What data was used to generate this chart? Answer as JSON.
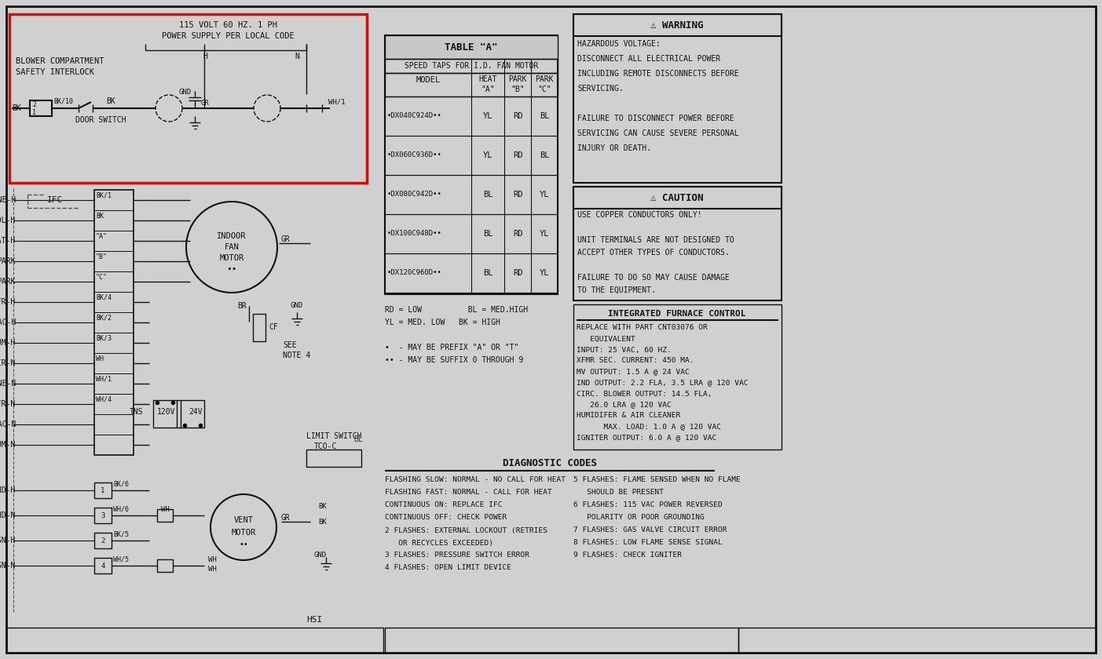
{
  "bg_color": "#d0d0d0",
  "fg_color": "#111111",
  "red_color": "#cc1111",
  "figsize": [
    14.03,
    8.4
  ],
  "dpi": 100,
  "table_title": "TABLE \"A\"",
  "table_subtitle": "SPEED TAPS FOR I.D. FAN MOTOR",
  "table_rows": [
    [
      "•DX040C924D••",
      "YL",
      "RD",
      "BL"
    ],
    [
      "•DX060C936D••",
      "YL",
      "RD",
      "BL"
    ],
    [
      "•DX080C942D••",
      "BL",
      "RD",
      "YL"
    ],
    [
      "•DX100C948D••",
      "BL",
      "RD",
      "YL"
    ],
    [
      "•DX120C960D••",
      "BL",
      "RD",
      "YL"
    ]
  ],
  "legend": [
    "RD = LOW          BL = MED.HIGH",
    "YL = MED. LOW   BK = HIGH",
    "",
    "•  - MAY BE PREFIX \"A\" OR \"T\"",
    "•• - MAY BE SUFFIX 0 THROUGH 9"
  ],
  "warning_lines": [
    "HAZARDOUS VOLTAGE:",
    "DISCONNECT ALL ELECTRICAL POWER",
    "INCLUDING REMOTE DISCONNECTS BEFORE",
    "SERVICING.",
    "",
    "FAILURE TO DISCONNECT POWER BEFORE",
    "SERVICING CAN CAUSE SEVERE PERSONAL",
    "INJURY OR DEATH."
  ],
  "caution_lines": [
    "USE COPPER CONDUCTORS ONLY!",
    "",
    "UNIT TERMINALS ARE NOT DESIGNED TO",
    "ACCEPT OTHER TYPES OF CONDUCTORS.",
    "",
    "FAILURE TO DO SO MAY CAUSE DAMAGE",
    "TO THE EQUIPMENT."
  ],
  "ifc_title": "INTEGRATED FURNACE CONTROL",
  "ifc_lines": [
    "REPLACE WITH PART CNT03076 OR",
    "   EQUIVALENT",
    "INPUT: 25 VAC, 60 HZ.",
    "XFMR SEC. CURRENT: 450 MA.",
    "MV OUTPUT: 1.5 A @ 24 VAC",
    "IND OUTPUT: 2.2 FLA, 3.5 LRA @ 120 VAC",
    "CIRC. BLOWER OUTPUT: 14.5 FLA,",
    "   26.0 LRA @ 120 VAC",
    "HUMIDIFER & AIR CLEANER",
    "      MAX. LOAD: 1.0 A @ 120 VAC",
    "IGNITER OUTPUT: 6.0 A @ 120 VAC"
  ],
  "diag_title": "DIAGNOSTIC CODES",
  "diag_left": [
    "FLASHING SLOW: NORMAL - NO CALL FOR HEAT",
    "FLASHING FAST: NORMAL - CALL FOR HEAT",
    "CONTINUOUS ON: REPLACE IFC",
    "CONTINUOUS OFF: CHECK POWER",
    "2 FLASHES: EXTERNAL LOCKOUT (RETRIES",
    "   OR RECYCLES EXCEEDED)",
    "3 FLASHES: PRESSURE SWITCH ERROR",
    "4 FLASHES: OPEN LIMIT DEVICE"
  ],
  "diag_right": [
    "5 FLASHES: FLAME SENSED WHEN NO FLAME",
    "   SHOULD BE PRESENT",
    "6 FLASHES: 115 VAC POWER REVERSED",
    "   POLARITY OR POOR GROUNDING",
    "7 FLASHES: GAS VALVE CIRCUIT ERROR",
    "8 FLASHES: LOW FLAME SENSE SIGNAL",
    "9 FLASHES: CHECK IGNITER"
  ],
  "left_rows": [
    [
      "LINE-H",
      "BK/1"
    ],
    [
      "COOL-H",
      "BK"
    ],
    [
      "HEAT-H",
      "\"A\""
    ],
    [
      "PARK",
      "\"B\""
    ],
    [
      "PARK",
      "\"C\""
    ],
    [
      "XMFR-H",
      "BK/4"
    ],
    [
      "EAC-H",
      "BK/2"
    ],
    [
      "HUM-H",
      "BK/3"
    ],
    [
      "CIR-N",
      "WH"
    ],
    [
      "LINE-N",
      "WH/1"
    ],
    [
      "XMFR-N",
      "WH/4"
    ],
    [
      "EAC-N",
      ""
    ],
    [
      "HUM-N",
      ""
    ]
  ],
  "connector_rows": [
    [
      "IND-H",
      "1",
      "BK/6"
    ],
    [
      "IND-N",
      "3",
      "WH/6"
    ],
    [
      "IGN-H",
      "2",
      "BK/5"
    ],
    [
      "IGN-N",
      "4",
      "WH/5"
    ]
  ],
  "power_line1": "115 VOLT 60 HZ. 1 PH",
  "power_line2": "POWER SUPPLY PER LOCAL CODE",
  "blower_line1": "BLOWER COMPARTMENT",
  "blower_line2": "SAFETY INTERLOCK",
  "door_switch": "DOOR SWITCH",
  "ifc_label": "IFC"
}
